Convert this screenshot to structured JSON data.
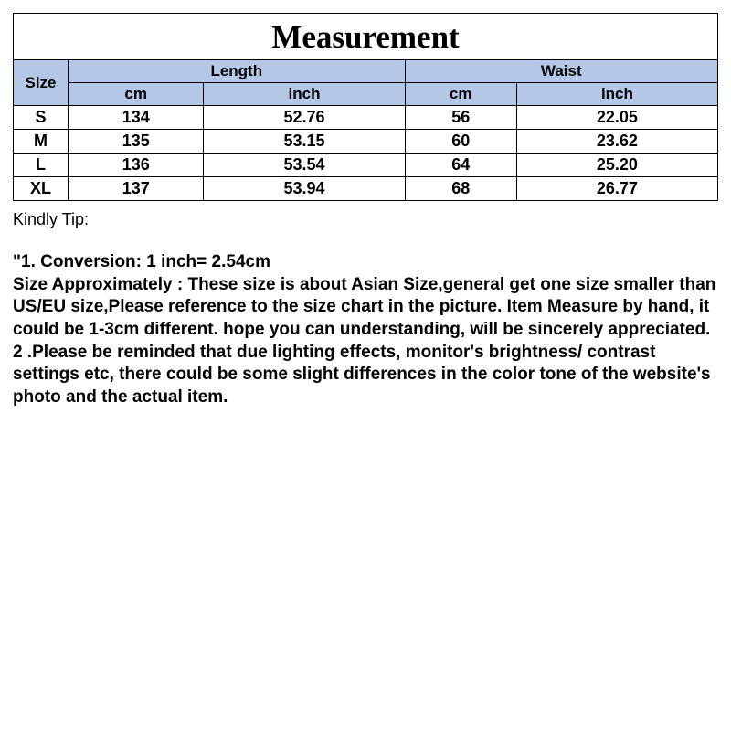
{
  "table": {
    "title": "Measurement",
    "header_bg": "#b4c7e7",
    "border_color": "#000000",
    "size_label": "Size",
    "groups": [
      {
        "label": "Length",
        "sub": [
          "cm",
          "inch"
        ]
      },
      {
        "label": "Waist",
        "sub": [
          "cm",
          "inch"
        ]
      }
    ],
    "rows": [
      {
        "size": "S",
        "length_cm": "134",
        "length_in": "52.76",
        "waist_cm": "56",
        "waist_in": "22.05"
      },
      {
        "size": "M",
        "length_cm": "135",
        "length_in": "53.15",
        "waist_cm": "60",
        "waist_in": "23.62"
      },
      {
        "size": "L",
        "length_cm": "136",
        "length_in": "53.54",
        "waist_cm": "64",
        "waist_in": "25.20"
      },
      {
        "size": "XL",
        "length_cm": "137",
        "length_in": "53.94",
        "waist_cm": "68",
        "waist_in": "26.77"
      }
    ]
  },
  "notes": {
    "tip_label": "Kindly Tip:",
    "line1": "\"1. Conversion:  1 inch= 2.54cm",
    "line2": "Size Approximately :  These size is about Asian Size,general get one size smaller than US/EU size,Please reference to the size chart in the picture. Item Measure by hand, it could be 1-3cm different. hope you can understanding, will be sincerely appreciated.",
    "line3": "2 .Please be reminded that due lighting effects, monitor's brightness/ contrast settings etc, there could be some slight differences in the color tone of the website's photo and the actual item."
  },
  "style": {
    "title_fontsize": 35,
    "header_fontsize": 17,
    "data_fontsize": 18,
    "notes_fontsize": 19,
    "background": "#ffffff",
    "text_color": "#000000"
  }
}
